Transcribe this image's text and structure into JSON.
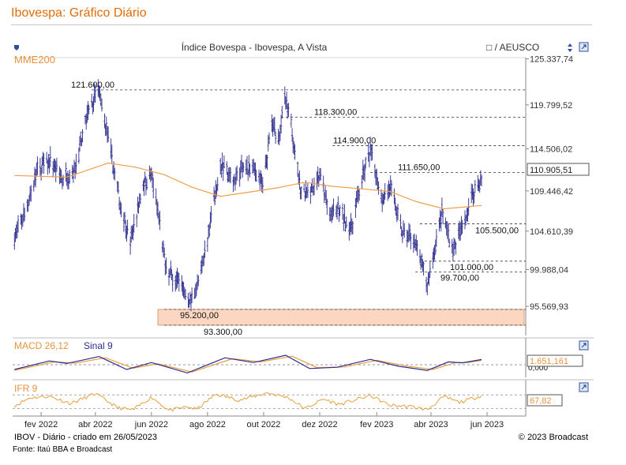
{
  "page_title": "Ibovespa: Gráfico Diário",
  "header": {
    "chart_title": "Índice Bovespa - Ibovespa, A Vista",
    "compare_label": "□ / AEUSCO"
  },
  "footer": {
    "left": "IBOV - Diário - criado em 26/05/2023",
    "right": "© 2023 Broadcast",
    "source": "Fonte: Itaú BBA e Broadcast"
  },
  "colors": {
    "price": "#2b2b8c",
    "mme": "#f0a04b",
    "band": "#f9c9ad",
    "title": "#e46c0a",
    "macd": "#2b2b8c",
    "signal": "#e8a040"
  },
  "chart_data": [
    {
      "type": "line",
      "name": "price-panel",
      "indicator_label": "MME200",
      "y_ticks": [
        "125.337,74",
        "119.799,52",
        "114.506,02",
        "109.446,42",
        "104.610,39",
        "99.988,04",
        "95.569,93"
      ],
      "x_ticks": [
        "fev 2022",
        "abr 2022",
        "jun 2022",
        "ago 2022",
        "out 2022",
        "dez 2022",
        "fev 2023",
        "abr 2023",
        "jun 2023"
      ],
      "last_value": "110.905,51",
      "levels": [
        {
          "label": "121.600,00",
          "value": 121600,
          "start": "2022-03-28"
        },
        {
          "label": "118.300,00",
          "value": 118300,
          "start": "2022-10-20"
        },
        {
          "label": "114.900,00",
          "value": 114900,
          "start": "2022-12-15"
        },
        {
          "label": "111.650,00",
          "value": 111650,
          "start": "2023-01-25"
        },
        {
          "label": "105.500,00",
          "value": 105500,
          "start": "2023-03-20"
        },
        {
          "label": "101.000,00",
          "value": 101000,
          "start": "2023-03-25"
        },
        {
          "label": "99.700,00",
          "value": 99700,
          "start": "2023-03-15"
        },
        {
          "label": "95.200,00",
          "value": 95200,
          "start": "2022-06-15"
        },
        {
          "label": "93.300,00",
          "value": 93300,
          "start": "2022-06-15"
        }
      ],
      "support_band": [
        93300,
        95200
      ],
      "close_series": [
        [
          "2022-01-03",
          103900
        ],
        [
          "2022-01-14",
          106800
        ],
        [
          "2022-01-28",
          111900
        ],
        [
          "2022-02-10",
          113200
        ],
        [
          "2022-02-24",
          110900
        ],
        [
          "2022-03-10",
          112200
        ],
        [
          "2022-03-24",
          118700
        ],
        [
          "2022-04-04",
          121600
        ],
        [
          "2022-04-14",
          116300
        ],
        [
          "2022-04-28",
          107900
        ],
        [
          "2022-05-09",
          103200
        ],
        [
          "2022-05-23",
          110300
        ],
        [
          "2022-06-01",
          111400
        ],
        [
          "2022-06-10",
          105500
        ],
        [
          "2022-06-17",
          99800
        ],
        [
          "2022-06-30",
          98500
        ],
        [
          "2022-07-14",
          96100
        ],
        [
          "2022-07-25",
          99500
        ],
        [
          "2022-08-05",
          106500
        ],
        [
          "2022-08-15",
          112500
        ],
        [
          "2022-08-29",
          110800
        ],
        [
          "2022-09-09",
          112300
        ],
        [
          "2022-09-23",
          111700
        ],
        [
          "2022-09-30",
          110000
        ],
        [
          "2022-10-10",
          117500
        ],
        [
          "2022-10-17",
          115500
        ],
        [
          "2022-10-24",
          120600
        ],
        [
          "2022-11-01",
          116600
        ],
        [
          "2022-11-10",
          109600
        ],
        [
          "2022-11-21",
          109500
        ],
        [
          "2022-12-01",
          111400
        ],
        [
          "2022-12-12",
          106400
        ],
        [
          "2022-12-21",
          107200
        ],
        [
          "2023-01-04",
          104800
        ],
        [
          "2023-01-16",
          110900
        ],
        [
          "2023-01-25",
          114400
        ],
        [
          "2023-02-06",
          108600
        ],
        [
          "2023-02-16",
          109700
        ],
        [
          "2023-03-01",
          104400
        ],
        [
          "2023-03-13",
          103800
        ],
        [
          "2023-03-23",
          100200
        ],
        [
          "2023-03-28",
          98200
        ],
        [
          "2023-04-03",
          101400
        ],
        [
          "2023-04-13",
          106900
        ],
        [
          "2023-04-25",
          102300
        ],
        [
          "2023-05-05",
          105100
        ],
        [
          "2023-05-15",
          108800
        ],
        [
          "2023-05-26",
          110905
        ]
      ],
      "mme200_series": [
        [
          "2022-01-03",
          111300
        ],
        [
          "2022-03-01",
          111100
        ],
        [
          "2022-04-15",
          112800
        ],
        [
          "2022-05-15",
          112300
        ],
        [
          "2022-06-15",
          111400
        ],
        [
          "2022-07-15",
          109900
        ],
        [
          "2022-08-15",
          108800
        ],
        [
          "2022-09-15",
          109300
        ],
        [
          "2022-10-15",
          109800
        ],
        [
          "2022-11-15",
          110500
        ],
        [
          "2022-12-15",
          110000
        ],
        [
          "2023-01-15",
          109700
        ],
        [
          "2023-02-15",
          109400
        ],
        [
          "2023-03-15",
          108200
        ],
        [
          "2023-04-15",
          107300
        ],
        [
          "2023-05-26",
          107700
        ]
      ]
    },
    {
      "type": "line",
      "name": "macd-panel",
      "title": "MACD 26,12",
      "signal_title": "Sinal 9",
      "y_ticks": [
        "0,000"
      ],
      "last_value": "1.651,161",
      "macd_series": [
        [
          "2022-01-03",
          -1500
        ],
        [
          "2022-02-10",
          1200
        ],
        [
          "2022-03-01",
          400
        ],
        [
          "2022-04-05",
          2600
        ],
        [
          "2022-05-05",
          -1500
        ],
        [
          "2022-06-01",
          700
        ],
        [
          "2022-07-10",
          -2600
        ],
        [
          "2022-08-20",
          2200
        ],
        [
          "2022-09-20",
          700
        ],
        [
          "2022-10-25",
          3000
        ],
        [
          "2022-11-20",
          -1200
        ],
        [
          "2022-12-20",
          -800
        ],
        [
          "2023-01-25",
          1700
        ],
        [
          "2023-02-25",
          -500
        ],
        [
          "2023-03-28",
          -1800
        ],
        [
          "2023-04-20",
          900
        ],
        [
          "2023-05-05",
          600
        ],
        [
          "2023-05-26",
          1651
        ]
      ],
      "signal_series": [
        [
          "2022-01-03",
          -1800
        ],
        [
          "2022-02-15",
          900
        ],
        [
          "2022-03-10",
          500
        ],
        [
          "2022-04-12",
          2200
        ],
        [
          "2022-05-12",
          -1100
        ],
        [
          "2022-06-08",
          300
        ],
        [
          "2022-07-15",
          -2300
        ],
        [
          "2022-08-28",
          1900
        ],
        [
          "2022-09-28",
          900
        ],
        [
          "2022-11-01",
          2700
        ],
        [
          "2022-11-28",
          -900
        ],
        [
          "2022-12-28",
          -700
        ],
        [
          "2023-02-01",
          1400
        ],
        [
          "2023-03-05",
          -400
        ],
        [
          "2023-04-03",
          -1500
        ],
        [
          "2023-04-28",
          700
        ],
        [
          "2023-05-12",
          700
        ],
        [
          "2023-05-26",
          1400
        ]
      ]
    },
    {
      "type": "line",
      "name": "ifr-panel",
      "title": "IFR 9",
      "last_value": "67,82",
      "levels": [
        70,
        30
      ],
      "ifr_series": [
        [
          "2022-01-03",
          38
        ],
        [
          "2022-01-20",
          62
        ],
        [
          "2022-02-10",
          66
        ],
        [
          "2022-03-05",
          45
        ],
        [
          "2022-04-01",
          74
        ],
        [
          "2022-04-25",
          33
        ],
        [
          "2022-05-12",
          26
        ],
        [
          "2022-06-01",
          64
        ],
        [
          "2022-06-20",
          25
        ],
        [
          "2022-07-10",
          35
        ],
        [
          "2022-07-20",
          28
        ],
        [
          "2022-08-10",
          72
        ],
        [
          "2022-09-05",
          55
        ],
        [
          "2022-10-05",
          76
        ],
        [
          "2022-10-28",
          62
        ],
        [
          "2022-11-15",
          30
        ],
        [
          "2022-12-05",
          58
        ],
        [
          "2022-12-22",
          42
        ],
        [
          "2023-01-25",
          68
        ],
        [
          "2023-02-15",
          40
        ],
        [
          "2023-03-10",
          36
        ],
        [
          "2023-03-28",
          27
        ],
        [
          "2023-04-15",
          65
        ],
        [
          "2023-05-02",
          48
        ],
        [
          "2023-05-26",
          67.82
        ]
      ]
    }
  ]
}
